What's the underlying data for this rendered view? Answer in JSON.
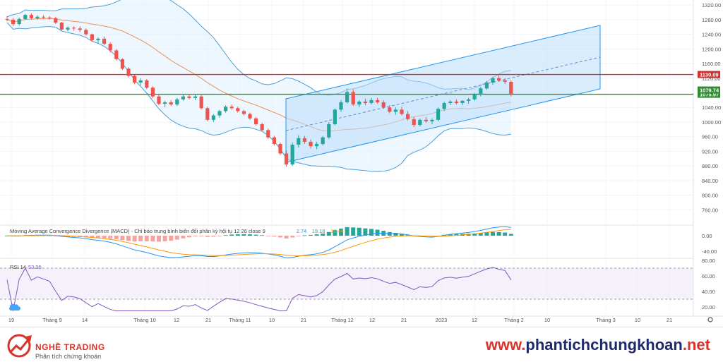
{
  "chart_data": {
    "type": "candlestick",
    "price_axis": {
      "ticks": [
        "1320.00",
        "1280.00",
        "1240.00",
        "1200.00",
        "1160.00",
        "1120.00",
        "1040.00",
        "1000.00",
        "960.00",
        "920.00",
        "880.00",
        "840.00",
        "800.00",
        "760.00"
      ],
      "ylim": [
        720,
        1330
      ]
    },
    "time_axis": {
      "ticks": [
        "19",
        "Tháng 9",
        "14",
        "Tháng 10",
        "12",
        "21",
        "Tháng 11",
        "10",
        "21",
        "Tháng 12",
        "12",
        "21",
        "2023",
        "12",
        "Tháng 2",
        "10",
        "Tháng 3",
        "10",
        "21"
      ]
    },
    "candles": [
      [
        1282,
        1290,
        1276,
        1280
      ],
      [
        1280,
        1285,
        1262,
        1268
      ],
      [
        1268,
        1286,
        1264,
        1282
      ],
      [
        1282,
        1296,
        1279,
        1293
      ],
      [
        1293,
        1298,
        1280,
        1284
      ],
      [
        1284,
        1292,
        1280,
        1288
      ],
      [
        1288,
        1292,
        1282,
        1286
      ],
      [
        1286,
        1290,
        1280,
        1284
      ],
      [
        1284,
        1288,
        1268,
        1272
      ],
      [
        1272,
        1274,
        1250,
        1253
      ],
      [
        1253,
        1262,
        1248,
        1258
      ],
      [
        1258,
        1262,
        1250,
        1256
      ],
      [
        1256,
        1262,
        1246,
        1252
      ],
      [
        1252,
        1256,
        1236,
        1240
      ],
      [
        1240,
        1242,
        1220,
        1224
      ],
      [
        1224,
        1232,
        1216,
        1228
      ],
      [
        1228,
        1234,
        1210,
        1214
      ],
      [
        1214,
        1218,
        1190,
        1196
      ],
      [
        1196,
        1200,
        1168,
        1172
      ],
      [
        1172,
        1174,
        1142,
        1146
      ],
      [
        1146,
        1150,
        1122,
        1126
      ],
      [
        1126,
        1130,
        1104,
        1108
      ],
      [
        1108,
        1120,
        1100,
        1114
      ],
      [
        1114,
        1118,
        1090,
        1094
      ],
      [
        1094,
        1098,
        1066,
        1070
      ],
      [
        1070,
        1074,
        1046,
        1050
      ],
      [
        1050,
        1058,
        1040,
        1054
      ],
      [
        1054,
        1060,
        1044,
        1048
      ],
      [
        1048,
        1066,
        1044,
        1062
      ],
      [
        1062,
        1074,
        1058,
        1070
      ],
      [
        1070,
        1076,
        1062,
        1066
      ],
      [
        1066,
        1074,
        1060,
        1070
      ],
      [
        1070,
        1074,
        1034,
        1038
      ],
      [
        1038,
        1042,
        1002,
        1006
      ],
      [
        1006,
        1022,
        1000,
        1018
      ],
      [
        1018,
        1034,
        1012,
        1030
      ],
      [
        1030,
        1046,
        1026,
        1042
      ],
      [
        1042,
        1048,
        1034,
        1038
      ],
      [
        1038,
        1042,
        1026,
        1030
      ],
      [
        1030,
        1034,
        1018,
        1022
      ],
      [
        1022,
        1026,
        1006,
        1010
      ],
      [
        1010,
        1014,
        990,
        994
      ],
      [
        994,
        998,
        974,
        978
      ],
      [
        978,
        982,
        954,
        958
      ],
      [
        958,
        962,
        936,
        940
      ],
      [
        940,
        944,
        910,
        914
      ],
      [
        914,
        922,
        878,
        884
      ],
      [
        884,
        944,
        880,
        938
      ],
      [
        938,
        964,
        930,
        956
      ],
      [
        956,
        962,
        940,
        946
      ],
      [
        946,
        952,
        928,
        934
      ],
      [
        934,
        946,
        926,
        940
      ],
      [
        940,
        962,
        936,
        958
      ],
      [
        958,
        1000,
        954,
        994
      ],
      [
        994,
        1038,
        990,
        1034
      ],
      [
        1034,
        1060,
        1028,
        1054
      ],
      [
        1054,
        1092,
        1050,
        1082
      ],
      [
        1082,
        1090,
        1044,
        1048
      ],
      [
        1048,
        1060,
        1040,
        1056
      ],
      [
        1056,
        1064,
        1046,
        1052
      ],
      [
        1052,
        1066,
        1048,
        1060
      ],
      [
        1060,
        1066,
        1050,
        1054
      ],
      [
        1054,
        1060,
        1036,
        1040
      ],
      [
        1040,
        1046,
        1024,
        1028
      ],
      [
        1028,
        1040,
        1020,
        1034
      ],
      [
        1034,
        1042,
        1018,
        1022
      ],
      [
        1022,
        1030,
        1004,
        1008
      ],
      [
        1008,
        1014,
        986,
        992
      ],
      [
        992,
        1010,
        988,
        1006
      ],
      [
        1006,
        1014,
        998,
        1002
      ],
      [
        1002,
        1010,
        994,
        1006
      ],
      [
        1006,
        1040,
        1002,
        1036
      ],
      [
        1036,
        1056,
        1030,
        1052
      ],
      [
        1052,
        1060,
        1046,
        1056
      ],
      [
        1056,
        1062,
        1048,
        1052
      ],
      [
        1052,
        1060,
        1046,
        1058
      ],
      [
        1058,
        1066,
        1050,
        1062
      ],
      [
        1062,
        1080,
        1058,
        1076
      ],
      [
        1076,
        1096,
        1070,
        1092
      ],
      [
        1092,
        1112,
        1088,
        1108
      ],
      [
        1108,
        1124,
        1102,
        1120
      ],
      [
        1120,
        1128,
        1110,
        1114
      ],
      [
        1114,
        1120,
        1104,
        1110
      ],
      [
        1110,
        1114,
        1070,
        1076
      ]
    ],
    "horizontal_levels": [
      {
        "label": "1130.09",
        "value": 1130.09,
        "color": "#d32f2f"
      },
      {
        "label": "1075.97",
        "value": 1075.97,
        "color": "#2e8b2e"
      }
    ],
    "last_price_label": "1079.74",
    "indicators": {
      "macd": {
        "legend": "Moving Average Convergence Divergence (MACD) - Chỉ báo trung bình biến đổi phân kỳ hội tụ 12 26 close 9",
        "values": [
          "2.74",
          "19.18",
          "16.44"
        ],
        "value_colors": [
          "#2196f3",
          "#26a69a",
          "#ff9800"
        ],
        "ticks": [
          "0.00",
          "-40.00"
        ]
      },
      "rsi": {
        "legend": "RSI 14",
        "value": "53.95",
        "ticks": [
          "80.00",
          "60.00",
          "40.00",
          "20.00"
        ]
      }
    },
    "colors": {
      "up": "#26a69a",
      "down": "#ef5350",
      "band": "#4a9fd8",
      "channel": "#2196f3",
      "ma": "#e8915b",
      "macd": "#2196f3",
      "signal": "#ff9800",
      "rsi": "#7e57c2"
    }
  },
  "footer": {
    "brand": "NGHỀ TRADING",
    "tagline": "Phân tích chứng khoán",
    "site_prefix": "www.",
    "site_main": "phantichchungkhoan",
    "site_suffix": ".net"
  }
}
